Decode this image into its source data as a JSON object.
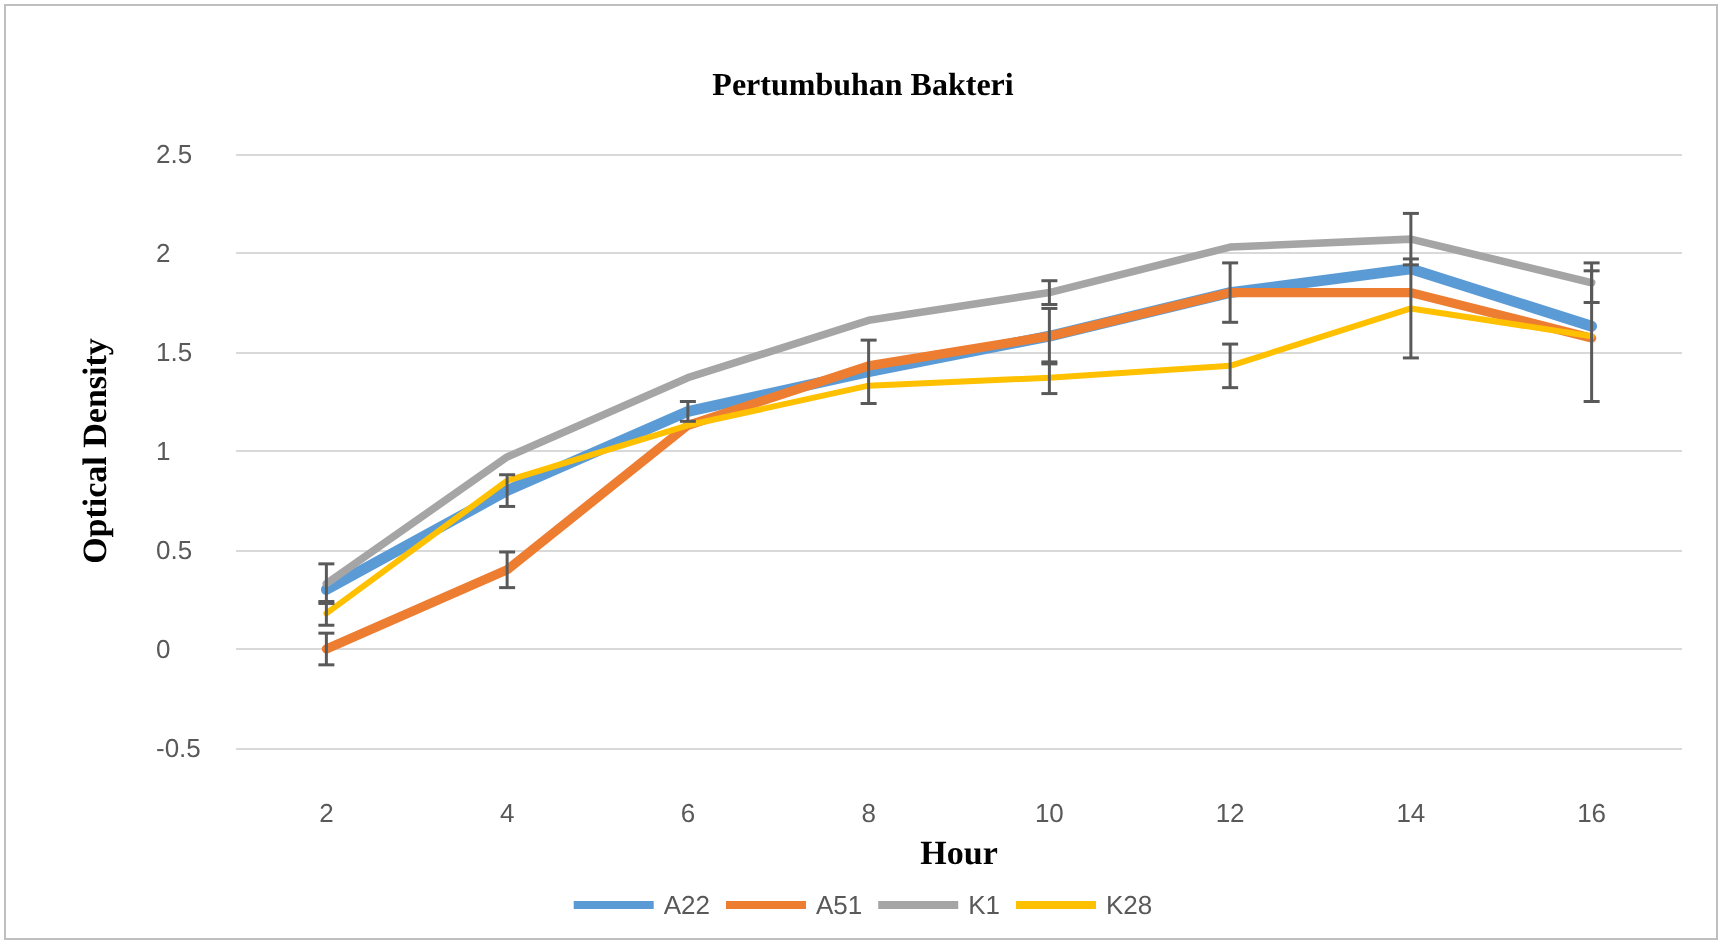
{
  "chart_data": {
    "type": "line",
    "title": "Pertumbuhan Bakteri",
    "xlabel": "Hour",
    "ylabel": "Optical Density",
    "categories": [
      "2",
      "4",
      "6",
      "8",
      "10",
      "12",
      "14",
      "16"
    ],
    "series": [
      {
        "name": "A22",
        "color": "#5b9bd5",
        "values": [
          0.3,
          0.8,
          1.2,
          1.4,
          1.58,
          1.8,
          1.92,
          1.63
        ],
        "errors": [
          null,
          0.08,
          0.05,
          0.16,
          0.14,
          0.15,
          null,
          null
        ]
      },
      {
        "name": "A51",
        "color": "#ed7d31",
        "values": [
          0,
          0.4,
          1.13,
          1.43,
          1.58,
          1.8,
          1.8,
          1.57
        ],
        "errors": [
          0.08,
          0.09,
          null,
          null,
          null,
          null,
          null,
          null
        ]
      },
      {
        "name": "K1",
        "color": "#a5a5a5",
        "values": [
          0.33,
          0.97,
          1.37,
          1.66,
          1.8,
          2.03,
          2.07,
          1.85
        ],
        "errors": [
          0.1,
          null,
          null,
          null,
          0.06,
          null,
          0.13,
          0.1
        ]
      },
      {
        "name": "K28",
        "color": "#ffc000",
        "values": [
          0.18,
          0.85,
          1.13,
          1.33,
          1.37,
          1.43,
          1.72,
          1.58
        ],
        "errors": [
          0.06,
          null,
          null,
          null,
          0.08,
          0.11,
          0.25,
          0.33
        ]
      }
    ],
    "ylim": [
      -0.5,
      2.5
    ],
    "yticks": [
      -0.5,
      0,
      0.5,
      1,
      1.5,
      2,
      2.5
    ],
    "grid": "y",
    "legend": "bottom",
    "marker": "none",
    "line_style": "solid"
  }
}
